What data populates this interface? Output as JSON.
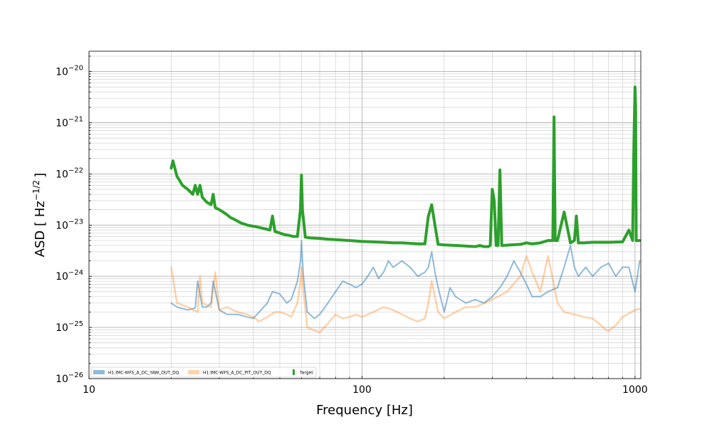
{
  "chart_data": {
    "type": "line",
    "title": "",
    "xlabel": "Frequency [Hz]",
    "ylabel_base": "ASD [ Hz",
    "ylabel_exp": "−1/2",
    "ylabel_tail": "]",
    "xscale": "log",
    "yscale": "log",
    "xlim": [
      10,
      1050
    ],
    "ylim": [
      1e-26,
      2.5e-20
    ],
    "grid": true,
    "legend_position": "lower-left",
    "x_ticks": [
      {
        "value": 10,
        "label": "10"
      },
      {
        "value": 100,
        "label": "100"
      },
      {
        "value": 1000,
        "label": "1000"
      }
    ],
    "y_ticks": [
      {
        "value": 1e-26,
        "base": "10",
        "exp": "−26"
      },
      {
        "value": 1e-25,
        "base": "10",
        "exp": "−25"
      },
      {
        "value": 1e-24,
        "base": "10",
        "exp": "−24"
      },
      {
        "value": 1e-23,
        "base": "10",
        "exp": "−23"
      },
      {
        "value": 1e-22,
        "base": "10",
        "exp": "−22"
      },
      {
        "value": 1e-21,
        "base": "10",
        "exp": "−21"
      },
      {
        "value": 1e-20,
        "base": "10",
        "exp": "−20"
      }
    ],
    "series": [
      {
        "name": "H1:IMC-WFS_A_DC_YAW_OUT_DQ",
        "color": "#1f77b4",
        "opacity": 0.5,
        "width": 2,
        "x": [
          20,
          21,
          23,
          24.5,
          25,
          26,
          27,
          28,
          28.5,
          30,
          32,
          35,
          38,
          40,
          42,
          45,
          47,
          50,
          53,
          55,
          58,
          59.5,
          60,
          61,
          63,
          67,
          70,
          75,
          80,
          85,
          90,
          95,
          100,
          105,
          110,
          115,
          120,
          125,
          130,
          140,
          150,
          160,
          170,
          175,
          180,
          185,
          190,
          200,
          210,
          220,
          240,
          260,
          280,
          300,
          320,
          340,
          360,
          380,
          400,
          420,
          450,
          480,
          520,
          550,
          580,
          600,
          620,
          660,
          700,
          750,
          800,
          850,
          900,
          950,
          1000,
          1040
        ],
        "y": [
          3e-25,
          2.5e-25,
          2.2e-25,
          2.4e-25,
          8e-25,
          2.5e-25,
          2.5e-25,
          3e-25,
          8e-25,
          2.2e-25,
          1.8e-25,
          1.8e-25,
          1.6e-25,
          1.5e-25,
          2e-25,
          3e-25,
          5e-25,
          4.5e-25,
          3e-25,
          3.5e-25,
          8e-25,
          2e-24,
          5e-24,
          1e-24,
          2e-25,
          1.5e-25,
          1.8e-25,
          3e-25,
          5e-25,
          8e-25,
          7e-25,
          6e-25,
          7e-25,
          1e-24,
          1.5e-24,
          9e-25,
          1.2e-24,
          2e-24,
          1.5e-24,
          2e-24,
          1.5e-24,
          1e-24,
          1.2e-24,
          1.5e-24,
          3e-24,
          1.2e-24,
          6e-25,
          2e-25,
          6e-25,
          4e-25,
          3e-25,
          3.5e-25,
          3e-25,
          4e-25,
          6e-25,
          1e-24,
          2e-24,
          1.2e-24,
          7e-25,
          4e-25,
          4e-25,
          5e-25,
          6e-25,
          1.5e-24,
          4e-24,
          1.5e-24,
          1e-24,
          1.5e-24,
          1e-24,
          1.5e-24,
          1.8e-24,
          1e-24,
          1.5e-24,
          1.5e-24,
          5e-25,
          2e-24
        ]
      },
      {
        "name": "H1:IMC-WFS_A_DC_PIT_OUT_DQ",
        "color": "#ff7f0e",
        "opacity": 0.35,
        "width": 2.5,
        "x": [
          20,
          21,
          23,
          25,
          25.5,
          26,
          28,
          29,
          30,
          32,
          35,
          38,
          40,
          42,
          45,
          48,
          50,
          53,
          55,
          58,
          59.5,
          60,
          61,
          63,
          66,
          70,
          75,
          80,
          85,
          90,
          95,
          100,
          110,
          120,
          130,
          140,
          150,
          160,
          170,
          175,
          180,
          190,
          200,
          220,
          240,
          260,
          300,
          340,
          380,
          400,
          420,
          450,
          480,
          520,
          550,
          600,
          650,
          700,
          750,
          780,
          800,
          850,
          900,
          1000,
          1040
        ],
        "y": [
          1.5e-24,
          3e-25,
          2.5e-25,
          2e-25,
          1e-24,
          3e-25,
          2.5e-25,
          1.2e-24,
          2.2e-25,
          2.5e-25,
          2e-25,
          1.8e-25,
          1.6e-25,
          1.3e-25,
          1.6e-25,
          2e-25,
          2e-25,
          1.8e-25,
          1.6e-25,
          3e-25,
          8e-25,
          1.5e-24,
          5e-25,
          1e-25,
          9e-26,
          8e-26,
          1.2e-25,
          1.8e-25,
          1.5e-25,
          1.6e-25,
          1.8e-25,
          1.6e-25,
          2e-25,
          2.5e-25,
          2.2e-25,
          1.8e-25,
          1.5e-25,
          1.3e-25,
          1.5e-25,
          3e-25,
          8e-25,
          2e-25,
          1.5e-25,
          2e-25,
          2.5e-25,
          2.5e-25,
          3.5e-25,
          5e-25,
          1e-24,
          2.5e-24,
          1.2e-24,
          5e-25,
          2.5e-24,
          3e-25,
          2e-25,
          1.8e-25,
          1.6e-25,
          1.5e-25,
          1.1e-25,
          9e-26,
          8.5e-26,
          1.1e-25,
          1.6e-25,
          2.2e-25,
          2.3e-25
        ]
      },
      {
        "name": "Target",
        "color": "#2ca02c",
        "opacity": 1,
        "width": 4,
        "x": [
          20,
          20.3,
          21,
          22,
          23,
          24,
          24.5,
          25,
          25.5,
          26,
          27,
          28,
          28.5,
          29,
          30,
          31,
          32,
          33,
          34,
          35,
          36,
          37,
          38,
          40,
          42,
          44,
          46,
          47,
          48,
          50,
          52,
          54,
          56,
          58,
          59.5,
          60,
          60.5,
          62,
          65,
          70,
          75,
          80,
          90,
          100,
          110,
          120,
          130,
          140,
          150,
          160,
          170,
          175,
          180,
          185,
          190,
          200,
          220,
          240,
          260,
          270,
          280,
          290,
          295,
          300,
          305,
          310,
          315,
          320,
          325,
          330,
          350,
          380,
          400,
          420,
          450,
          480,
          500,
          505,
          510,
          520,
          550,
          580,
          600,
          610,
          620,
          650,
          700,
          800,
          900,
          950,
          980,
          990,
          1000,
          1005,
          1010,
          1040
        ],
        "y": [
          1.3e-22,
          1.8e-22,
          9e-23,
          6e-23,
          5e-23,
          4e-23,
          6e-23,
          4e-23,
          6e-23,
          3.5e-23,
          2.8e-23,
          2.5e-23,
          4e-23,
          2.2e-23,
          2e-23,
          1.8e-23,
          1.6e-23,
          1.4e-23,
          1.3e-23,
          1.2e-23,
          1.1e-23,
          1.05e-23,
          1e-23,
          9.5e-24,
          9e-24,
          8.5e-24,
          8e-24,
          1.5e-23,
          7.5e-24,
          7e-24,
          6.5e-24,
          6.3e-24,
          6e-24,
          6e-24,
          2e-23,
          9.5e-23,
          2e-23,
          5.8e-24,
          5.6e-24,
          5.5e-24,
          5.3e-24,
          5.2e-24,
          5e-24,
          4.8e-24,
          4.7e-24,
          4.6e-24,
          4.5e-24,
          4.5e-24,
          4.4e-24,
          4.3e-24,
          4.3e-24,
          1.5e-23,
          2.5e-23,
          1e-23,
          4.2e-24,
          4.1e-24,
          4e-24,
          3.9e-24,
          3.8e-24,
          4e-24,
          3.8e-24,
          3.8e-24,
          4e-24,
          5e-23,
          3e-23,
          4e-24,
          4e-24,
          1.2e-22,
          4e-24,
          4e-24,
          4.1e-24,
          4.2e-24,
          4.5e-24,
          4.3e-24,
          4.5e-24,
          5e-24,
          5e-24,
          1.3e-21,
          5e-24,
          5e-24,
          1.8e-23,
          4.5e-24,
          5e-24,
          1.5e-23,
          4.5e-24,
          4.5e-24,
          4.6e-24,
          4.6e-24,
          4.7e-24,
          8e-24,
          5e-24,
          3e-22,
          5e-21,
          2e-21,
          5e-24,
          5e-24
        ]
      }
    ],
    "legend": [
      {
        "label": "H1:IMC-WFS_A_DC_YAW_OUT_DQ",
        "color": "#1f77b4",
        "opacity": 0.5,
        "style": "patch"
      },
      {
        "label": "H1:IMC-WFS_A_DC_PIT_OUT_DQ",
        "color": "#ff7f0e",
        "opacity": 0.35,
        "style": "patch"
      },
      {
        "label": "Target",
        "color": "#2ca02c",
        "opacity": 1,
        "style": "bar"
      }
    ]
  }
}
